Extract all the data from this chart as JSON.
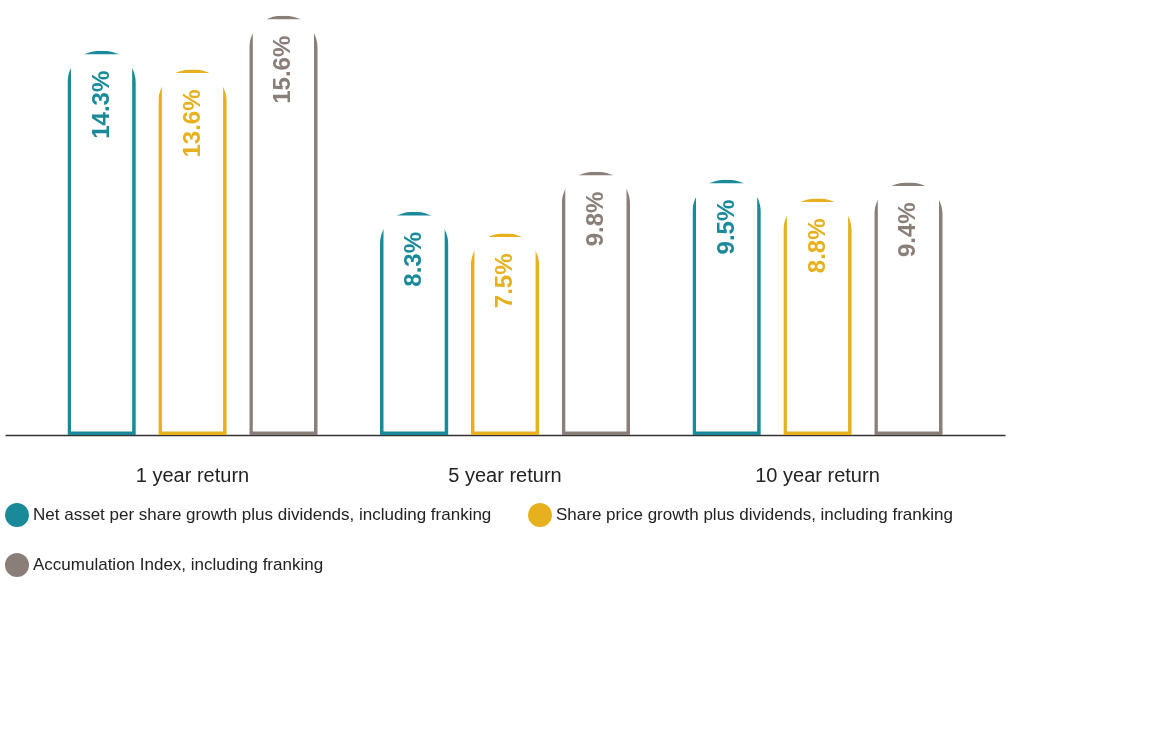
{
  "chart_data": {
    "type": "bar",
    "categories": [
      "1 year return",
      "5 year return",
      "10 year return"
    ],
    "series": [
      {
        "name": "Net asset per share growth plus dividends, including franking",
        "color": "#1a8a9a",
        "values": [
          14.3,
          8.3,
          9.5
        ],
        "value_labels": [
          "14.3%",
          "8.3%",
          "9.5%"
        ]
      },
      {
        "name": "Share price growth plus dividends, including franking",
        "color": "#e6b01e",
        "values": [
          13.6,
          7.5,
          8.8
        ],
        "value_labels": [
          "13.6%",
          "7.5%",
          "8.8%"
        ]
      },
      {
        "name": "Accumulation Index, including franking",
        "color": "#8a7f78",
        "values": [
          15.6,
          9.8,
          9.4
        ],
        "value_labels": [
          "15.6%",
          "9.8%",
          "9.4%"
        ]
      }
    ],
    "legend": "bottom",
    "grid": false
  }
}
